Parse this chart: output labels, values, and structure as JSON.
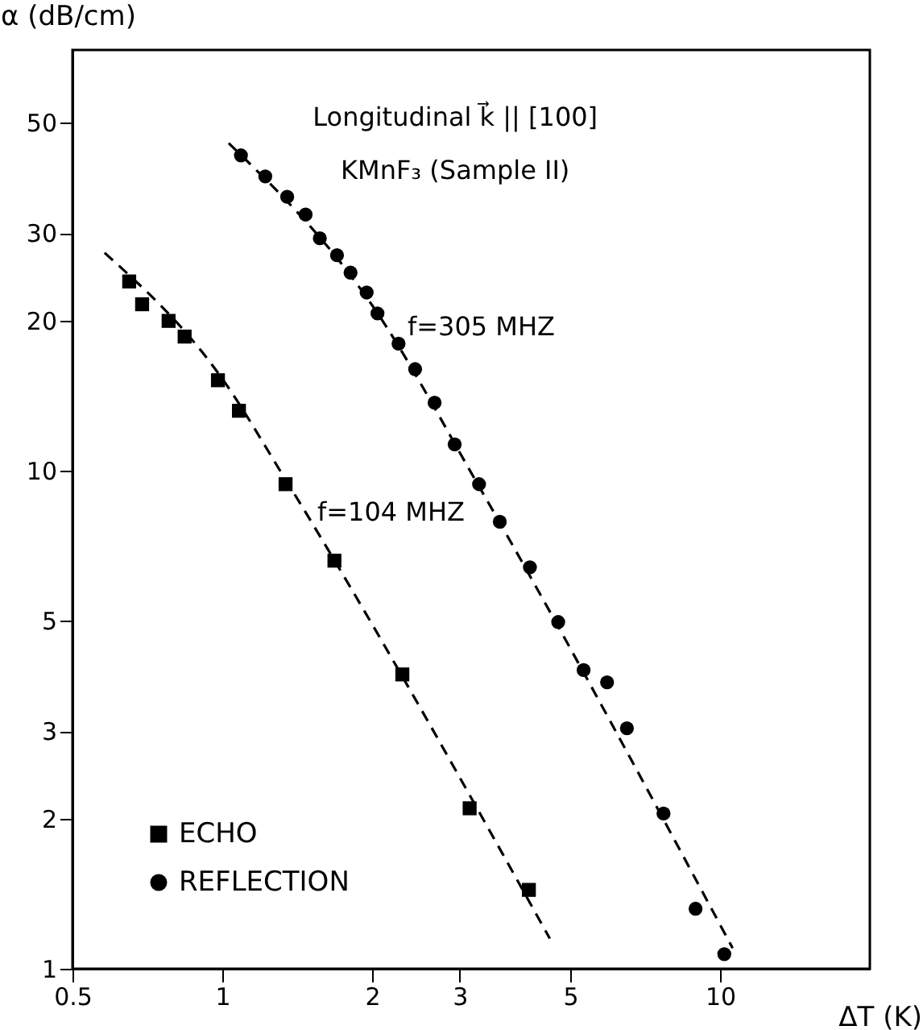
{
  "chart_data": {
    "type": "scatter",
    "title": "Longitudinal k⃗ || [100]",
    "subtitle": "KMnF₃ (Sample II)",
    "xlabel": "ΔT (K)",
    "ylabel": "α (dB/cm)",
    "log": "xy",
    "grid": false,
    "legend": "bottom left",
    "xlim": [
      0.5,
      20
    ],
    "xticks": [
      0.5,
      1,
      2,
      3,
      5,
      10
    ],
    "ylim": [
      1,
      70
    ],
    "yticks": [
      1,
      2,
      3,
      5,
      10,
      20,
      30,
      50
    ],
    "series": [
      {
        "name": "ECHO",
        "type": "scatter",
        "marker": "square",
        "color": "#000000",
        "x": [
          0.65,
          0.69,
          0.78,
          0.84,
          0.98,
          1.08,
          1.34,
          1.68,
          2.3,
          3.14,
          4.13
        ],
        "values": [
          24,
          21.6,
          20,
          18.6,
          15.2,
          13.2,
          9.4,
          6.6,
          3.9,
          2.1,
          1.44
        ]
      },
      {
        "name": "REFLECTION",
        "type": "scatter",
        "marker": "circle",
        "color": "#000000",
        "x": [
          1.09,
          1.22,
          1.35,
          1.47,
          1.57,
          1.7,
          1.81,
          1.95,
          2.05,
          2.26,
          2.44,
          2.67,
          2.93,
          3.28,
          3.61,
          4.15,
          4.73,
          5.32,
          5.93,
          6.5,
          7.7,
          8.93,
          10.2
        ],
        "values": [
          43,
          39,
          35.5,
          32.7,
          29.3,
          27.1,
          25,
          22.8,
          20.7,
          18,
          16,
          13.7,
          11.3,
          9.4,
          7.9,
          6.4,
          4.97,
          3.98,
          3.76,
          3.04,
          2.05,
          1.32,
          1.07
        ]
      },
      {
        "type": "line",
        "line_style": "dashed",
        "color": "#000000",
        "x": [
          0.58,
          1.0,
          1.34,
          4.55
        ],
        "values": [
          27.4,
          15.3,
          9.6,
          1.15
        ]
      },
      {
        "type": "line",
        "line_style": "dashed",
        "color": "#000000",
        "x": [
          1.03,
          2.0,
          3.3,
          10.6
        ],
        "values": [
          45.5,
          21.5,
          9.2,
          1.1
        ]
      }
    ],
    "annotations": [
      "f=305 MHZ",
      "f=104 MHZ"
    ]
  }
}
